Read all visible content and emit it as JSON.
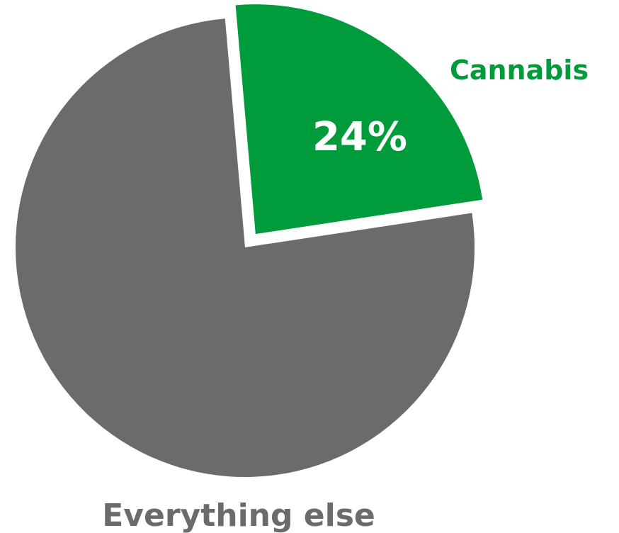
{
  "chart_data": {
    "type": "pie",
    "title": "",
    "slices": [
      {
        "label": "Cannabis",
        "value": 24,
        "value_label": "24%",
        "color": "#009B3A",
        "exploded": true
      },
      {
        "label": "Everything else",
        "value": 76,
        "value_label": "",
        "color": "#6B6B6B",
        "exploded": false
      }
    ],
    "legend": "none"
  }
}
